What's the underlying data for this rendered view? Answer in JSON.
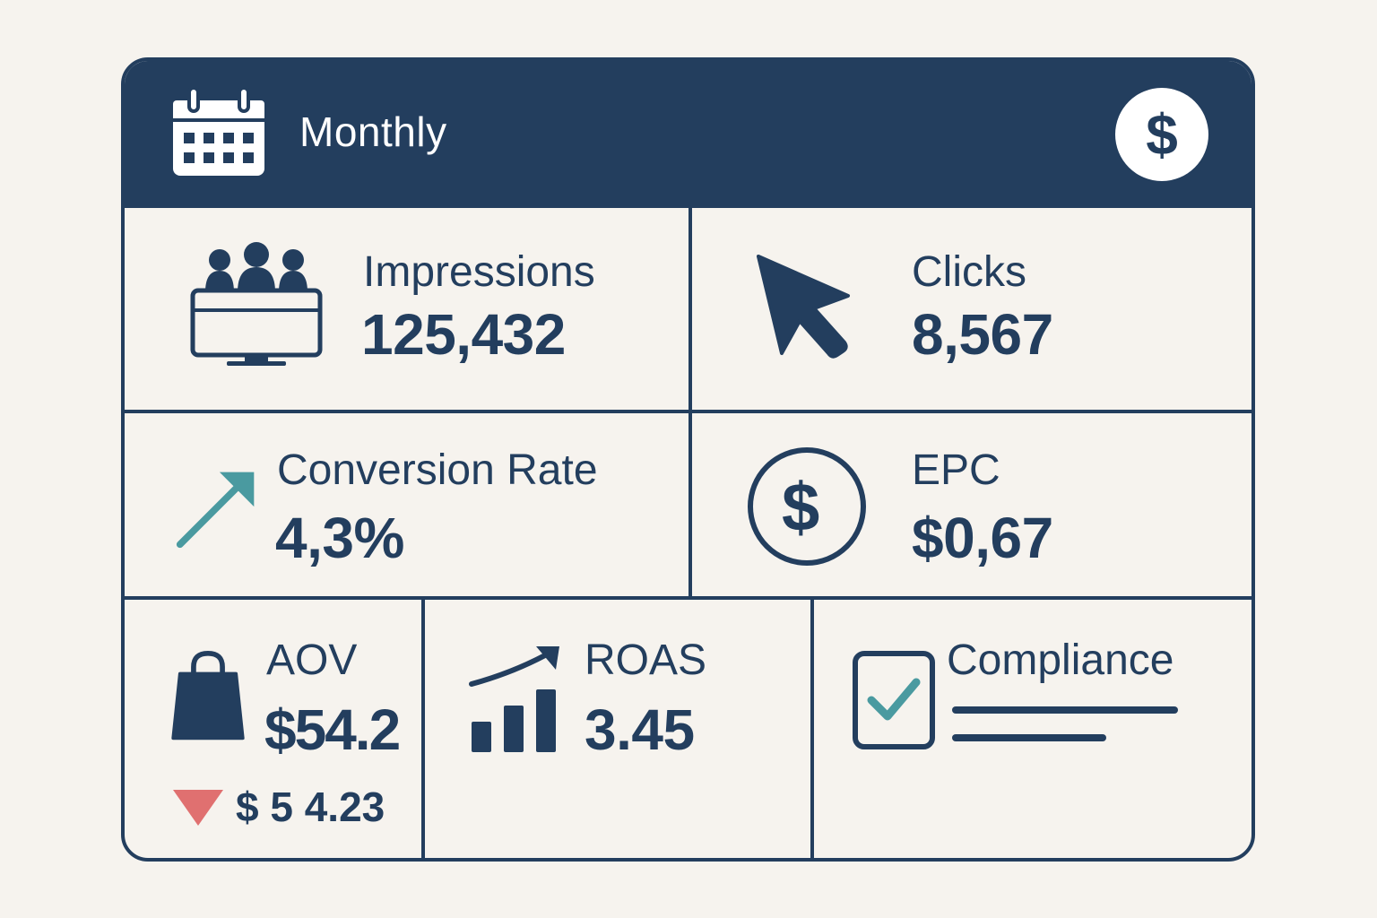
{
  "header": {
    "title": "Monthly",
    "calendar_icon": "calendar-icon",
    "currency_symbol": "$"
  },
  "metrics": {
    "impressions": {
      "label": "Impressions",
      "value": "125,432",
      "icon": "audience-monitor-icon"
    },
    "clicks": {
      "label": "Clicks",
      "value": "8,567",
      "icon": "cursor-arrow-icon"
    },
    "conversion_rate": {
      "label": "Conversion Rate",
      "value": "4,3%",
      "icon": "trend-up-arrow-icon"
    },
    "epc": {
      "label": "EPC",
      "value": "$0,67",
      "icon": "dollar-circle-icon",
      "symbol": "$"
    },
    "aov": {
      "label": "AOV",
      "value": "$54.2",
      "change_value": "$ 5 4.23",
      "icon": "shopping-bag-icon",
      "change_icon": "down-triangle-icon"
    },
    "roas": {
      "label": "ROAS",
      "value": "3.45",
      "icon": "growth-bar-chart-icon"
    },
    "compliance": {
      "label": "Compliance",
      "icon": "checkbox-checked-icon"
    }
  },
  "colors": {
    "navy": "#233e5e",
    "teal": "#4a9aa0",
    "red": "#e07070",
    "background": "#f6f3ee"
  }
}
